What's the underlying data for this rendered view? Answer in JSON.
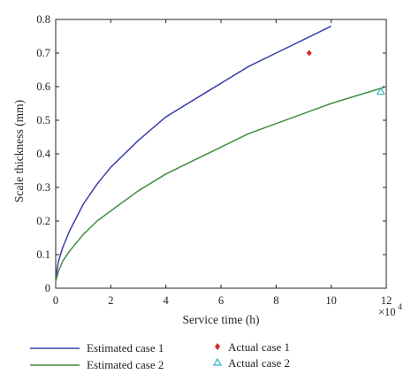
{
  "chart_data": {
    "type": "line",
    "title": "",
    "xlabel": "Service time (h)",
    "ylabel": "Scale thickness (mm)",
    "x_multiplier_label": "×10",
    "x_multiplier_exp": "4",
    "xlim": [
      0,
      12
    ],
    "ylim": [
      0,
      0.8
    ],
    "xticks": [
      "0",
      "2",
      "4",
      "6",
      "8",
      "10",
      "12"
    ],
    "yticks": [
      "0",
      "0.1",
      "0.2",
      "0.3",
      "0.4",
      "0.5",
      "0.6",
      "0.7",
      "0.8"
    ],
    "grid": false,
    "series": [
      {
        "name": "Estimated case 1",
        "kind": "line",
        "color": "#3b3fa8",
        "x": [
          0,
          0.1,
          0.25,
          0.5,
          1,
          1.5,
          2,
          3,
          4,
          5,
          6,
          7,
          8,
          9,
          10
        ],
        "y": [
          0.03,
          0.08,
          0.12,
          0.17,
          0.25,
          0.31,
          0.36,
          0.44,
          0.51,
          0.56,
          0.61,
          0.66,
          0.7,
          0.74,
          0.78
        ]
      },
      {
        "name": "Estimated case 2",
        "kind": "line",
        "color": "#3f8f3f",
        "x": [
          0,
          0.1,
          0.25,
          0.5,
          1,
          1.5,
          2,
          3,
          4,
          5,
          6,
          7,
          8,
          9,
          10,
          11,
          12
        ],
        "y": [
          0.02,
          0.05,
          0.08,
          0.11,
          0.16,
          0.2,
          0.23,
          0.29,
          0.34,
          0.38,
          0.42,
          0.46,
          0.49,
          0.52,
          0.55,
          0.575,
          0.6
        ]
      },
      {
        "name": "Actual case 1",
        "kind": "point",
        "marker": "diamond",
        "color": "#d42a2a",
        "x": [
          9.2
        ],
        "y": [
          0.7
        ]
      },
      {
        "name": "Actual case 2",
        "kind": "point",
        "marker": "triangle",
        "color": "#2bb3c0",
        "x": [
          11.8
        ],
        "y": [
          0.585
        ]
      }
    ],
    "legend_placement": "bottom"
  }
}
